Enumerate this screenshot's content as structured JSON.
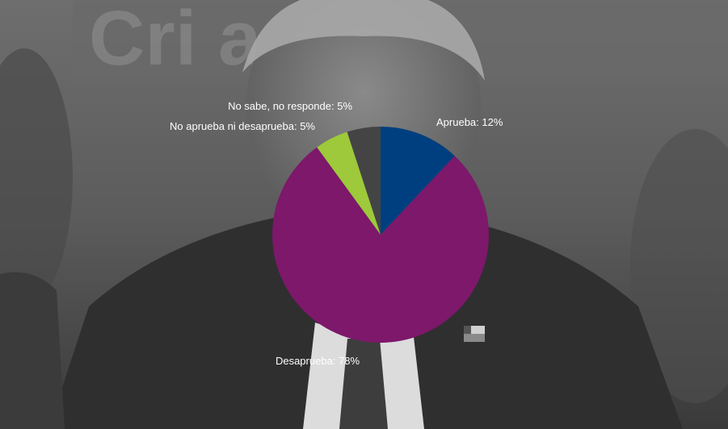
{
  "background": {
    "sign_text": "Cri     a Prot",
    "flag_icon": "chile-flag-icon"
  },
  "chart_data": {
    "type": "pie",
    "start_angle_deg": 0,
    "direction": "clockwise",
    "slices": [
      {
        "label": "Aprueba: 12%",
        "value": 12,
        "color": "#003f7f"
      },
      {
        "label": "Desaprueba: 78%",
        "value": 78,
        "color": "#7d186b"
      },
      {
        "label": "No aprueba ni desaprueba: 5%",
        "value": 5,
        "color": "#9dc93a"
      },
      {
        "label": "No sabe, no responde: 5%",
        "value": 5,
        "color": "#444444"
      }
    ]
  }
}
